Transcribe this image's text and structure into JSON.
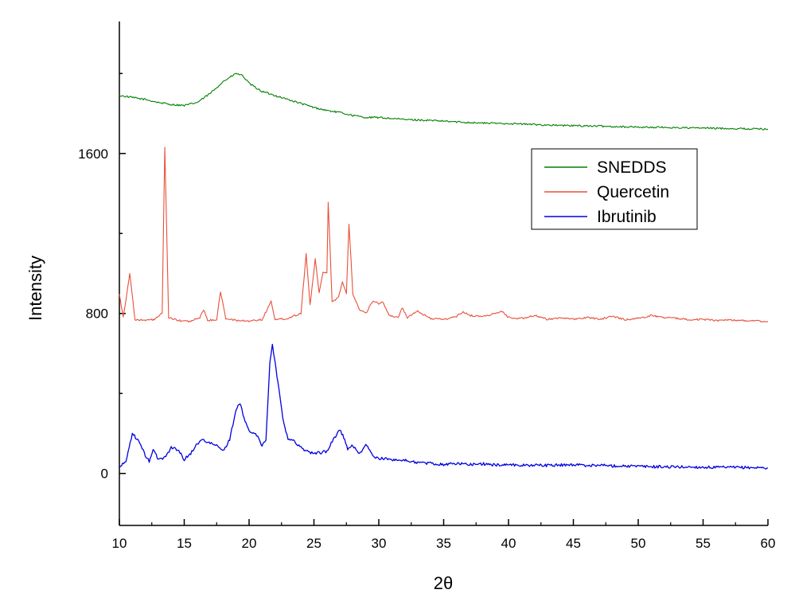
{
  "chart_data": {
    "type": "line",
    "title": "",
    "xlabel": "2θ",
    "ylabel": "Intensity",
    "xlim": [
      10,
      60
    ],
    "ylim": [
      -260,
      2260
    ],
    "x_ticks": [
      10,
      15,
      20,
      25,
      30,
      35,
      40,
      45,
      50,
      55,
      60
    ],
    "y_ticks": [
      0,
      800,
      1600
    ],
    "grid": false,
    "legend_position": "top-right",
    "series": [
      {
        "name": "SNEDDS",
        "color": "#008000",
        "points": [
          [
            10,
            1890
          ],
          [
            11,
            1880
          ],
          [
            12,
            1870
          ],
          [
            13,
            1855
          ],
          [
            14,
            1845
          ],
          [
            15,
            1840
          ],
          [
            16,
            1855
          ],
          [
            17,
            1900
          ],
          [
            18,
            1960
          ],
          [
            19,
            2000
          ],
          [
            19.5,
            1990
          ],
          [
            20,
            1950
          ],
          [
            21,
            1910
          ],
          [
            22,
            1890
          ],
          [
            23,
            1870
          ],
          [
            24,
            1850
          ],
          [
            25,
            1830
          ],
          [
            26,
            1815
          ],
          [
            27,
            1805
          ],
          [
            28,
            1790
          ],
          [
            29,
            1780
          ],
          [
            30,
            1780
          ],
          [
            32,
            1770
          ],
          [
            34,
            1765
          ],
          [
            36,
            1758
          ],
          [
            38,
            1752
          ],
          [
            40,
            1750
          ],
          [
            42,
            1745
          ],
          [
            44,
            1740
          ],
          [
            46,
            1738
          ],
          [
            48,
            1735
          ],
          [
            50,
            1732
          ],
          [
            52,
            1730
          ],
          [
            54,
            1728
          ],
          [
            56,
            1726
          ],
          [
            58,
            1724
          ],
          [
            60,
            1722
          ]
        ]
      },
      {
        "name": "Quercetin",
        "color": "#e8503a",
        "points": [
          [
            10,
            900
          ],
          [
            10.3,
            780
          ],
          [
            10.8,
            1000
          ],
          [
            11.2,
            770
          ],
          [
            12,
            765
          ],
          [
            12.7,
            770
          ],
          [
            13.3,
            800
          ],
          [
            13.5,
            1630
          ],
          [
            13.8,
            780
          ],
          [
            14.5,
            765
          ],
          [
            15.5,
            760
          ],
          [
            16.2,
            780
          ],
          [
            16.5,
            820
          ],
          [
            16.8,
            765
          ],
          [
            17.5,
            770
          ],
          [
            17.8,
            910
          ],
          [
            18.2,
            775
          ],
          [
            19,
            765
          ],
          [
            20,
            762
          ],
          [
            21,
            770
          ],
          [
            21.7,
            860
          ],
          [
            22,
            770
          ],
          [
            23,
            775
          ],
          [
            23.5,
            790
          ],
          [
            24,
            800
          ],
          [
            24.4,
            1100
          ],
          [
            24.7,
            840
          ],
          [
            25.1,
            1070
          ],
          [
            25.4,
            900
          ],
          [
            25.7,
            1010
          ],
          [
            26,
            1000
          ],
          [
            26.1,
            1360
          ],
          [
            26.4,
            860
          ],
          [
            26.9,
            880
          ],
          [
            27.2,
            960
          ],
          [
            27.5,
            900
          ],
          [
            27.7,
            1250
          ],
          [
            28,
            900
          ],
          [
            28.5,
            820
          ],
          [
            29,
            800
          ],
          [
            29.5,
            860
          ],
          [
            30,
            850
          ],
          [
            30.3,
            860
          ],
          [
            30.8,
            790
          ],
          [
            31.5,
            780
          ],
          [
            31.8,
            830
          ],
          [
            32.2,
            780
          ],
          [
            33,
            810
          ],
          [
            34,
            775
          ],
          [
            35,
            770
          ],
          [
            36,
            785
          ],
          [
            36.5,
            810
          ],
          [
            37,
            790
          ],
          [
            38,
            785
          ],
          [
            39,
            800
          ],
          [
            39.5,
            810
          ],
          [
            40,
            780
          ],
          [
            41,
            775
          ],
          [
            42,
            790
          ],
          [
            43,
            770
          ],
          [
            44,
            780
          ],
          [
            45,
            770
          ],
          [
            46,
            780
          ],
          [
            47,
            772
          ],
          [
            48,
            785
          ],
          [
            49,
            770
          ],
          [
            50,
            775
          ],
          [
            51,
            790
          ],
          [
            52,
            780
          ],
          [
            53,
            775
          ],
          [
            54,
            770
          ],
          [
            55,
            770
          ],
          [
            56,
            765
          ],
          [
            57,
            768
          ],
          [
            58,
            765
          ],
          [
            59,
            762
          ],
          [
            60,
            760
          ]
        ]
      },
      {
        "name": "Ibrutinib",
        "color": "#0000e0",
        "points": [
          [
            10,
            30
          ],
          [
            10.5,
            60
          ],
          [
            11,
            200
          ],
          [
            11.5,
            160
          ],
          [
            12,
            90
          ],
          [
            12.3,
            60
          ],
          [
            12.6,
            120
          ],
          [
            13,
            70
          ],
          [
            13.5,
            80
          ],
          [
            14,
            130
          ],
          [
            14.5,
            120
          ],
          [
            15,
            70
          ],
          [
            15.5,
            100
          ],
          [
            16,
            150
          ],
          [
            16.5,
            170
          ],
          [
            17,
            150
          ],
          [
            17.5,
            140
          ],
          [
            18,
            110
          ],
          [
            18.5,
            170
          ],
          [
            19,
            320
          ],
          [
            19.3,
            350
          ],
          [
            19.6,
            280
          ],
          [
            20,
            210
          ],
          [
            20.5,
            200
          ],
          [
            21,
            140
          ],
          [
            21.3,
            170
          ],
          [
            21.6,
            550
          ],
          [
            21.8,
            640
          ],
          [
            22,
            560
          ],
          [
            22.3,
            420
          ],
          [
            22.6,
            280
          ],
          [
            23,
            170
          ],
          [
            23.5,
            160
          ],
          [
            24,
            130
          ],
          [
            24.5,
            110
          ],
          [
            25,
            100
          ],
          [
            25.5,
            105
          ],
          [
            26,
            110
          ],
          [
            26.5,
            170
          ],
          [
            27,
            220
          ],
          [
            27.3,
            180
          ],
          [
            27.6,
            120
          ],
          [
            28,
            140
          ],
          [
            28.5,
            100
          ],
          [
            29,
            140
          ],
          [
            29.3,
            120
          ],
          [
            29.6,
            80
          ],
          [
            30,
            75
          ],
          [
            31,
            70
          ],
          [
            32,
            65
          ],
          [
            33,
            55
          ],
          [
            34,
            50
          ],
          [
            35,
            45
          ],
          [
            36,
            50
          ],
          [
            37,
            45
          ],
          [
            38,
            48
          ],
          [
            39,
            42
          ],
          [
            40,
            45
          ],
          [
            41,
            40
          ],
          [
            42,
            42
          ],
          [
            43,
            40
          ],
          [
            44,
            42
          ],
          [
            45,
            44
          ],
          [
            46,
            40
          ],
          [
            47,
            42
          ],
          [
            48,
            38
          ],
          [
            49,
            38
          ],
          [
            50,
            35
          ],
          [
            52,
            33
          ],
          [
            54,
            32
          ],
          [
            56,
            30
          ],
          [
            58,
            30
          ],
          [
            60,
            28
          ]
        ]
      }
    ]
  }
}
